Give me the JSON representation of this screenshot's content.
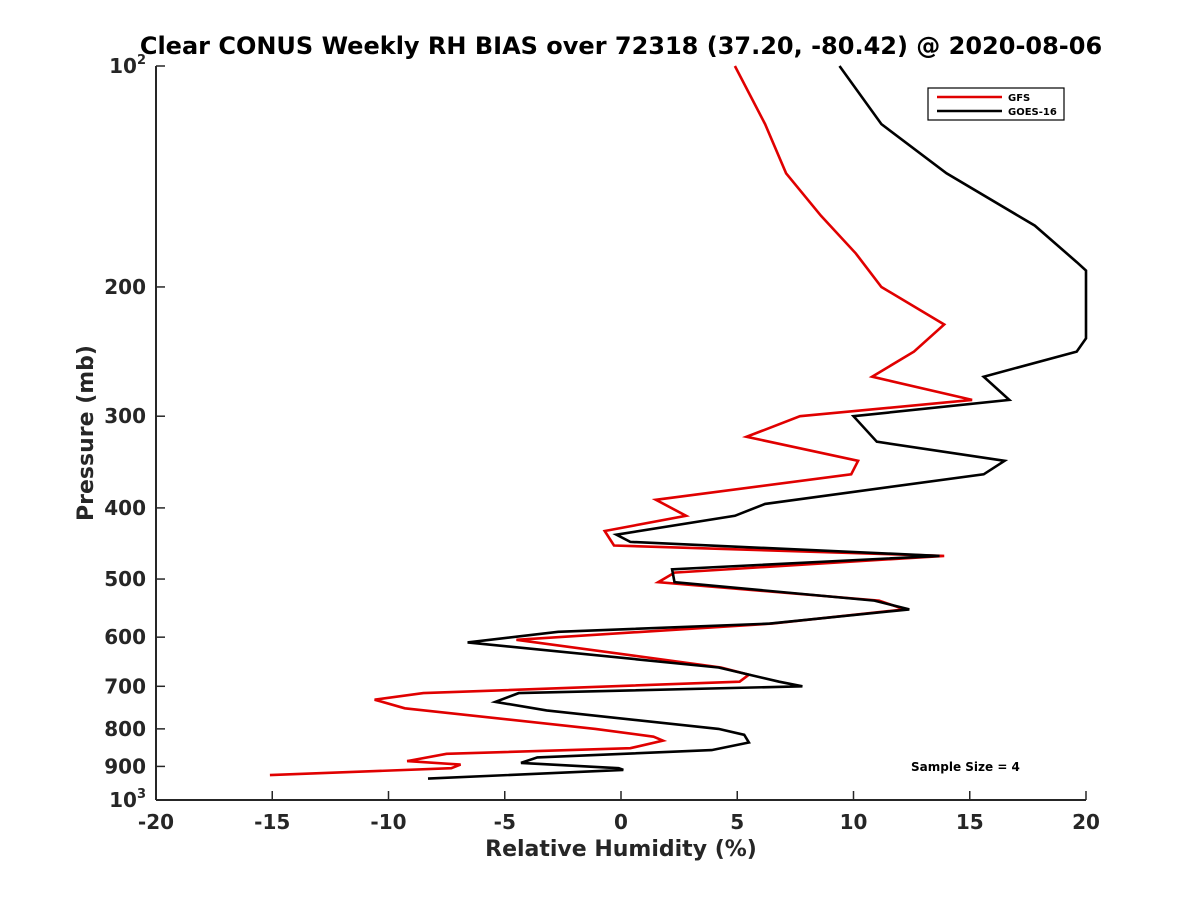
{
  "chart_data": {
    "type": "line",
    "title": "Clear CONUS Weekly RH BIAS over 72318 (37.20, -80.42) @ 2020-08-06",
    "xlabel": "Relative Humidity (%)",
    "ylabel": "Pressure (mb)",
    "xlim": [
      -20,
      20
    ],
    "ylim": [
      100,
      1000
    ],
    "y_scale": "log",
    "y_reversed": true,
    "grid": false,
    "legend_position": "top-right",
    "x_ticks": [
      -20,
      -15,
      -10,
      -5,
      0,
      5,
      10,
      15,
      20
    ],
    "x_tick_labels": [
      "-20",
      "-15",
      "-10",
      "-5",
      "0",
      "5",
      "10",
      "15",
      "20"
    ],
    "y_ticks": [
      {
        "value": 100,
        "base": "10",
        "sup": "2"
      },
      {
        "value": 200,
        "base": "200",
        "sup": ""
      },
      {
        "value": 300,
        "base": "300",
        "sup": ""
      },
      {
        "value": 400,
        "base": "400",
        "sup": ""
      },
      {
        "value": 500,
        "base": "500",
        "sup": ""
      },
      {
        "value": 600,
        "base": "600",
        "sup": ""
      },
      {
        "value": 700,
        "base": "700",
        "sup": ""
      },
      {
        "value": 800,
        "base": "800",
        "sup": ""
      },
      {
        "value": 900,
        "base": "900",
        "sup": ""
      },
      {
        "value": 1000,
        "base": "10",
        "sup": "3"
      }
    ],
    "annotation": "Sample Size = 4",
    "series": [
      {
        "name": "GFS",
        "color": "#e00000",
        "points": [
          [
            4.9,
            100
          ],
          [
            6.2,
            120
          ],
          [
            7.1,
            140
          ],
          [
            8.6,
            160
          ],
          [
            10.1,
            180
          ],
          [
            11.2,
            200
          ],
          [
            13.9,
            225
          ],
          [
            12.6,
            245
          ],
          [
            10.8,
            265
          ],
          [
            15.1,
            285
          ],
          [
            7.7,
            300
          ],
          [
            5.4,
            320
          ],
          [
            10.2,
            345
          ],
          [
            9.9,
            360
          ],
          [
            1.5,
            390
          ],
          [
            2.8,
            410
          ],
          [
            -0.7,
            430
          ],
          [
            -0.3,
            450
          ],
          [
            13.9,
            465
          ],
          [
            2.3,
            490
          ],
          [
            1.6,
            505
          ],
          [
            11.1,
            535
          ],
          [
            12.2,
            550
          ],
          [
            6.5,
            575
          ],
          [
            -4.5,
            605
          ],
          [
            4.3,
            660
          ],
          [
            5.5,
            675
          ],
          [
            5.1,
            690
          ],
          [
            -8.5,
            715
          ],
          [
            -10.6,
            730
          ],
          [
            -9.3,
            750
          ],
          [
            -1.1,
            800
          ],
          [
            1.4,
            820
          ],
          [
            1.8,
            830
          ],
          [
            0.4,
            850
          ],
          [
            -7.5,
            865
          ],
          [
            -9.2,
            885
          ],
          [
            -6.9,
            895
          ],
          [
            -7.3,
            905
          ],
          [
            -15.1,
            925
          ]
        ]
      },
      {
        "name": "GOES-16",
        "color": "#000000",
        "points": [
          [
            9.4,
            100
          ],
          [
            11.2,
            120
          ],
          [
            14.0,
            140
          ],
          [
            17.8,
            165
          ],
          [
            19.6,
            185
          ],
          [
            20.0,
            190
          ],
          [
            20.0,
            235
          ],
          [
            19.6,
            245
          ],
          [
            15.6,
            265
          ],
          [
            16.7,
            285
          ],
          [
            10.0,
            300
          ],
          [
            11.0,
            325
          ],
          [
            16.5,
            345
          ],
          [
            15.6,
            360
          ],
          [
            6.2,
            395
          ],
          [
            4.9,
            410
          ],
          [
            -0.2,
            435
          ],
          [
            0.4,
            445
          ],
          [
            13.7,
            465
          ],
          [
            2.2,
            485
          ],
          [
            2.3,
            505
          ],
          [
            10.9,
            535
          ],
          [
            12.4,
            550
          ],
          [
            6.4,
            575
          ],
          [
            -2.7,
            590
          ],
          [
            -6.6,
            610
          ],
          [
            4.2,
            660
          ],
          [
            6.8,
            690
          ],
          [
            7.8,
            700
          ],
          [
            -4.4,
            715
          ],
          [
            -5.4,
            735
          ],
          [
            -3.2,
            755
          ],
          [
            4.2,
            800
          ],
          [
            5.3,
            815
          ],
          [
            5.5,
            835
          ],
          [
            3.9,
            855
          ],
          [
            -3.6,
            875
          ],
          [
            -4.3,
            890
          ],
          [
            -0.1,
            905
          ],
          [
            0.1,
            910
          ],
          [
            -8.3,
            935
          ]
        ]
      }
    ]
  }
}
